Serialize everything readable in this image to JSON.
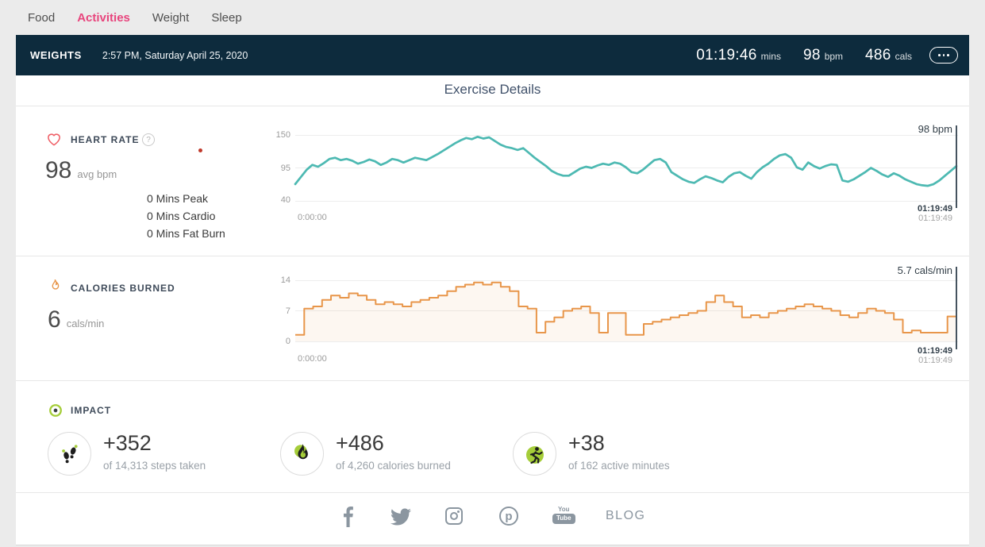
{
  "nav": {
    "items": [
      {
        "label": "Food",
        "active": false
      },
      {
        "label": "Activities",
        "active": true
      },
      {
        "label": "Weight",
        "active": false
      },
      {
        "label": "Sleep",
        "active": false
      }
    ]
  },
  "header": {
    "title": "WEIGHTS",
    "datetime": "2:57 PM, Saturday April 25, 2020",
    "stats": [
      {
        "value": "01:19:46",
        "unit": "mins"
      },
      {
        "value": "98",
        "unit": "bpm"
      },
      {
        "value": "486",
        "unit": "cals"
      }
    ]
  },
  "page_title": "Exercise Details",
  "heart_rate": {
    "label": "HEART RATE",
    "avg_value": "98",
    "avg_unit": "avg bpm",
    "zones": [
      "0 Mins Peak",
      "0 Mins Cardio",
      "0 Mins Fat Burn"
    ],
    "cursor_value": "98 bpm",
    "cursor_time": "01:19:49",
    "cursor_time_sub": "01:19:49"
  },
  "calories": {
    "label": "CALORIES BURNED",
    "avg_value": "6",
    "avg_unit": "cals/min",
    "cursor_value": "5.7 cals/min",
    "cursor_time": "01:19:49",
    "cursor_time_sub": "01:19:49"
  },
  "impact": {
    "label": "IMPACT",
    "stats": [
      {
        "value": "+352",
        "caption": "of 14,313 steps taken",
        "icon": "footprints-icon"
      },
      {
        "value": "+486",
        "caption": "of 4,260 calories burned",
        "icon": "flame-icon"
      },
      {
        "value": "+38",
        "caption": "of 162 active minutes",
        "icon": "runner-icon"
      }
    ]
  },
  "footer": {
    "social": [
      "facebook",
      "twitter",
      "instagram",
      "pinterest",
      "youtube"
    ],
    "blog_label": "BLOG",
    "pinterest_letter": "p",
    "youtube_top": "You",
    "youtube_bottom": "Tube"
  },
  "colors": {
    "accent_pink": "#e8457d",
    "navy": "#0d2b3d",
    "teal": "#4db9b2",
    "orange": "#e8964a",
    "lime_green": "#a5cd39",
    "heart_red": "#ef5b63"
  },
  "chart_data": [
    {
      "type": "line",
      "title": "Heart Rate",
      "ylabel": "bpm",
      "ylim": [
        40,
        150
      ],
      "y_ticks": [
        "150",
        "95",
        "40"
      ],
      "x_ticks": [
        "0:00:00"
      ],
      "x_range": [
        "0:00:00",
        "01:19:49"
      ],
      "grid": true,
      "series": [
        {
          "name": "heart_rate_bpm",
          "values": [
            68,
            80,
            92,
            100,
            97,
            103,
            110,
            112,
            108,
            110,
            107,
            102,
            105,
            109,
            106,
            100,
            104,
            110,
            108,
            104,
            108,
            112,
            110,
            108,
            113,
            118,
            124,
            130,
            136,
            141,
            145,
            143,
            147,
            144,
            146,
            140,
            134,
            130,
            128,
            125,
            128,
            120,
            112,
            105,
            98,
            90,
            85,
            82,
            82,
            88,
            94,
            97,
            95,
            99,
            102,
            100,
            104,
            102,
            96,
            88,
            86,
            92,
            100,
            108,
            110,
            104,
            88,
            82,
            76,
            72,
            70,
            76,
            81,
            78,
            74,
            71,
            80,
            86,
            88,
            82,
            77,
            88,
            96,
            102,
            110,
            116,
            118,
            112,
            96,
            92,
            104,
            98,
            94,
            98,
            101,
            100,
            74,
            72,
            76,
            82,
            88,
            95,
            90,
            84,
            80,
            86,
            82,
            76,
            72,
            68,
            66,
            65,
            68,
            74,
            82,
            90,
            98
          ]
        }
      ]
    },
    {
      "type": "area-step",
      "title": "Calories Burned",
      "ylabel": "cals/min",
      "ylim": [
        0,
        14
      ],
      "y_ticks": [
        "14",
        "7",
        "0"
      ],
      "x_ticks": [
        "0:00:00"
      ],
      "x_range": [
        "0:00:00",
        "01:19:49"
      ],
      "grid": true,
      "series": [
        {
          "name": "cals_per_min",
          "values": [
            1.5,
            7.5,
            8,
            9.5,
            10.5,
            10,
            11,
            10.5,
            9.5,
            8.5,
            9,
            8.5,
            8,
            9,
            9.5,
            10,
            10.5,
            11.5,
            12.5,
            13,
            13.5,
            13,
            13.5,
            12.5,
            11.5,
            8,
            7.5,
            2,
            4.5,
            5.5,
            7,
            7.5,
            8,
            6.5,
            2,
            6.5,
            6.5,
            1.5,
            1.5,
            4,
            4.5,
            5,
            5.5,
            6,
            6.5,
            7,
            9,
            10.5,
            9,
            8,
            5.5,
            6,
            5.5,
            6.5,
            7,
            7.5,
            8,
            8.5,
            8,
            7.5,
            7,
            6,
            5.5,
            6.5,
            7.5,
            7,
            6.5,
            5,
            2,
            2.5,
            2,
            2,
            2,
            5.7
          ]
        }
      ]
    }
  ]
}
